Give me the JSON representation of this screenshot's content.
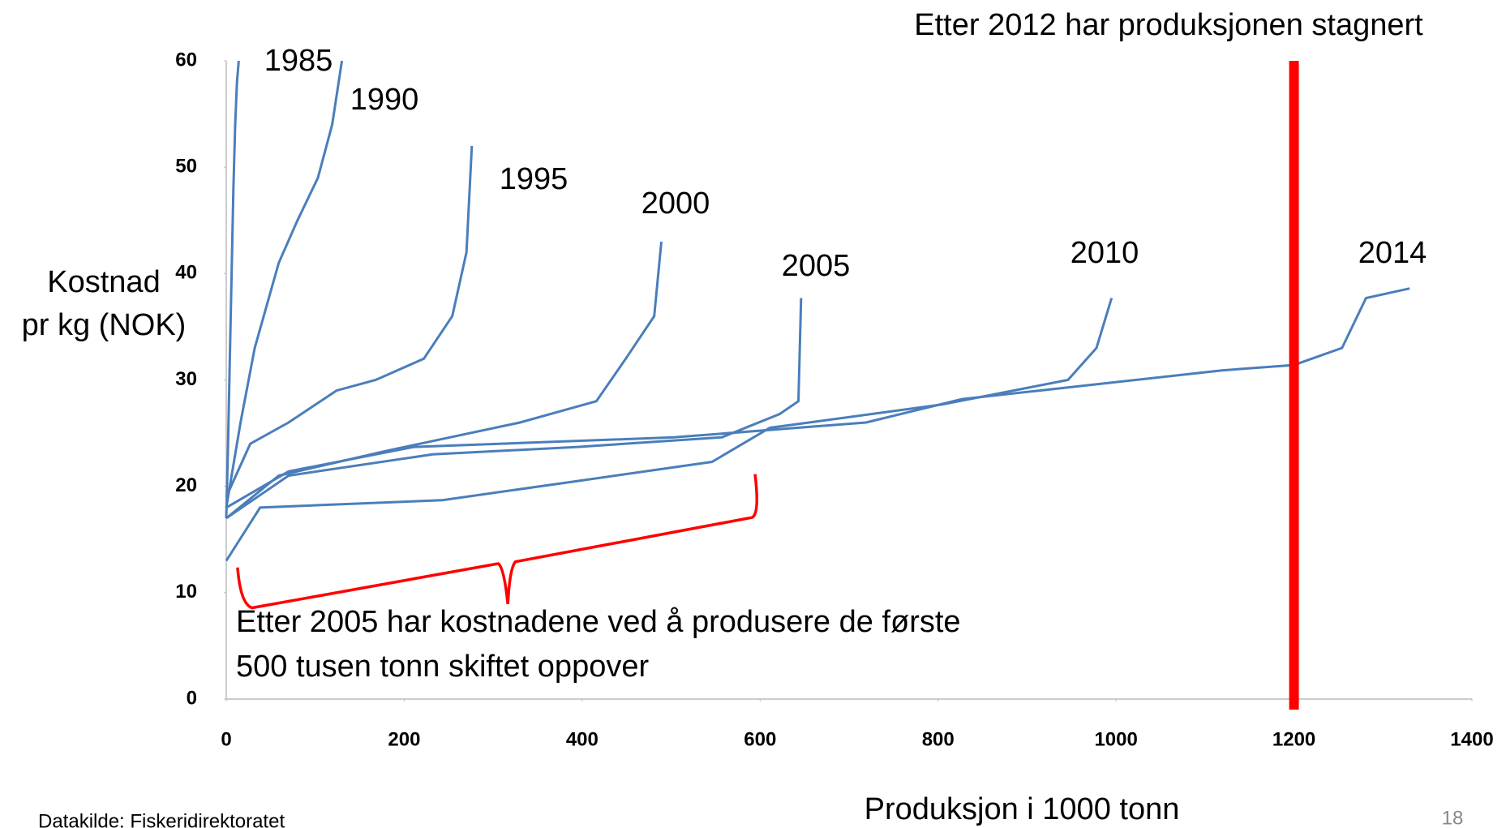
{
  "chart_data": {
    "type": "line",
    "title": "Etter 2012 har produksjonen stagnert",
    "y_label": [
      "Kostnad",
      "pr kg (NOK)"
    ],
    "x_label": "Produksjon i 1000 tonn",
    "annotation": [
      "Etter 2005 har kostnadene ved å produsere de første",
      "500 tusen tonn skiftet oppover"
    ],
    "source": "Datakilde: Fiskeridirektoratet",
    "page_number": "18",
    "xlim": [
      0,
      1400
    ],
    "xticks": [
      0,
      200,
      400,
      600,
      800,
      1000,
      1200,
      1400
    ],
    "ylim": [
      0,
      60
    ],
    "yticks": [
      0,
      10,
      20,
      30,
      40,
      50,
      60
    ],
    "reference_line": {
      "x": 1200,
      "color": "#ff0000"
    },
    "series": [
      {
        "name": "1985",
        "color": "#4a7ebb",
        "x": [
          0,
          2,
          4,
          6,
          8,
          10,
          12,
          14
        ],
        "values": [
          17,
          24,
          32,
          40,
          48,
          54,
          58,
          60
        ]
      },
      {
        "name": "1990",
        "color": "#4a7ebb",
        "x": [
          0,
          16,
          32,
          59,
          80,
          103,
          119,
          130
        ],
        "values": [
          18,
          26,
          33,
          41,
          45,
          49,
          54,
          60
        ]
      },
      {
        "name": "1995",
        "color": "#4a7ebb",
        "x": [
          0,
          27,
          70,
          124,
          168,
          222,
          254,
          270,
          276
        ],
        "values": [
          19,
          24,
          26,
          29,
          30,
          32,
          36,
          42,
          52
        ]
      },
      {
        "name": "2000",
        "color": "#4a7ebb",
        "x": [
          0,
          59,
          178,
          330,
          416,
          449,
          481,
          489
        ],
        "values": [
          17,
          21,
          23.3,
          26,
          28,
          32,
          36,
          43
        ]
      },
      {
        "name": "2005",
        "color": "#4a7ebb",
        "x": [
          0,
          70,
          232,
          395,
          557,
          622,
          643,
          646
        ],
        "values": [
          17,
          21,
          23,
          23.7,
          24.6,
          26.8,
          28,
          37.7
        ]
      },
      {
        "name": "2010",
        "color": "#4a7ebb",
        "x": [
          0,
          38,
          243,
          395,
          546,
          611,
          805,
          946,
          978,
          995
        ],
        "values": [
          13,
          18,
          18.7,
          20.5,
          22.3,
          25.5,
          27.7,
          30,
          33,
          37.7
        ]
      },
      {
        "name": "2014",
        "color": "#4a7ebb",
        "x": [
          0,
          70,
          211,
          503,
          719,
          827,
          914,
          1119,
          1200,
          1254,
          1281,
          1330
        ],
        "values": [
          18,
          21.4,
          23.7,
          24.6,
          26,
          28.2,
          29,
          30.9,
          31.4,
          33,
          37.7,
          38.6
        ]
      }
    ]
  }
}
